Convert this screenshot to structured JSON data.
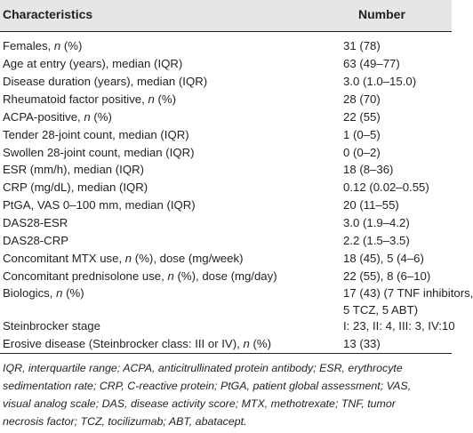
{
  "header": {
    "characteristics": "Characteristics",
    "number": "Number"
  },
  "rows": [
    {
      "label": "Females, ",
      "italic": "n",
      "suffix": " (%)",
      "value": "31 (78)"
    },
    {
      "label": "Age at entry (years), median (IQR)",
      "italic": "",
      "suffix": "",
      "value": "63 (49–77)"
    },
    {
      "label": "Disease duration (years), median (IQR)",
      "italic": "",
      "suffix": "",
      "value": "3.0 (1.0–15.0)"
    },
    {
      "label": "Rheumatoid factor positive, ",
      "italic": "n",
      "suffix": " (%)",
      "value": "28 (70)"
    },
    {
      "label": "ACPA-positive, ",
      "italic": "n",
      "suffix": " (%)",
      "value": "22 (55)"
    },
    {
      "label": "Tender 28-joint count, median (IQR)",
      "italic": "",
      "suffix": "",
      "value": "1 (0–5)"
    },
    {
      "label": "Swollen 28-joint count, median (IQR)",
      "italic": "",
      "suffix": "",
      "value": "0 (0–2)"
    },
    {
      "label": "ESR (mm/h), median (IQR)",
      "italic": "",
      "suffix": "",
      "value": "18 (8–36)"
    },
    {
      "label": "CRP (mg/dL), median (IQR)",
      "italic": "",
      "suffix": "",
      "value": "0.12 (0.02–0.55)"
    },
    {
      "label": "PtGA, VAS 0–100 mm, median (IQR)",
      "italic": "",
      "suffix": "",
      "value": "20 (11–55)"
    },
    {
      "label": "DAS28-ESR",
      "italic": "",
      "suffix": "",
      "value": "3.0 (1.9–4.2)"
    },
    {
      "label": "DAS28-CRP",
      "italic": "",
      "suffix": "",
      "value": "2.2 (1.5–3.5)"
    },
    {
      "label": "Concomitant MTX use, ",
      "italic": "n",
      "suffix": " (%), dose (mg/week)",
      "value": "18 (45), 5 (4–6)"
    },
    {
      "label": "Concomitant prednisolone use, ",
      "italic": "n",
      "suffix": " (%), dose (mg/day)",
      "value": "22 (55), 8 (6–10)"
    },
    {
      "label": "Biologics, ",
      "italic": "n",
      "suffix": " (%)",
      "value": "17 (43) (7 TNF inhibitors,",
      "value2": "5 TCZ, 5 ABT)"
    },
    {
      "label": "Steinbrocker stage",
      "italic": "",
      "suffix": "",
      "value": "I: 23, II: 4, III: 3, IV:10"
    },
    {
      "label": "Erosive disease (Steinbrocker class: III or IV), ",
      "italic": "n",
      "suffix": " (%)",
      "value": "13 (33)"
    }
  ],
  "footnote": [
    "IQR, interquartile range; ACPA, anticitrullinated protein antibody; ESR, erythrocyte",
    "sedimentation rate; CRP, C-reactive protein; PtGA, patient global assessment; VAS,",
    "visual analog scale; DAS, disease activity score; MTX, methotrexate; TNF, tumor",
    "necrosis factor; TCZ, tocilizumab; ABT, abatacept."
  ]
}
